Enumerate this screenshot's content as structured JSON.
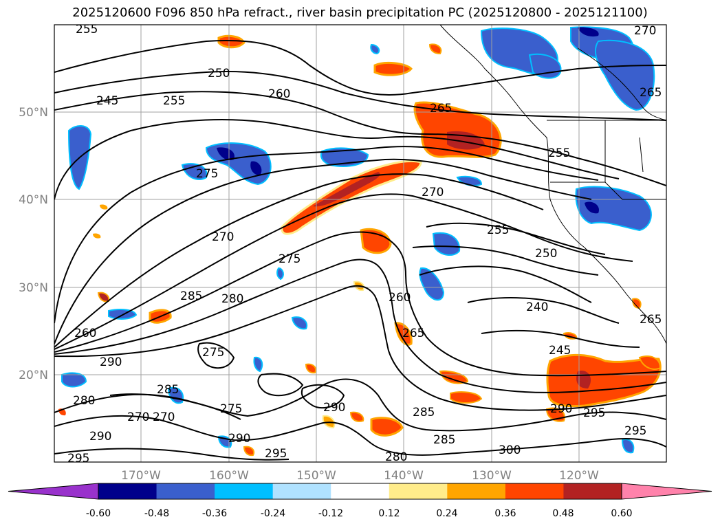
{
  "title": "2025120600 F096 850 hPa refract., river basin precipitation PC (2025120800 - 2025121100)",
  "map": {
    "lon_labels": [
      "170°W",
      "160°W",
      "150°W",
      "140°W",
      "130°W",
      "120°W"
    ],
    "lat_labels": [
      "50°N",
      "40°N",
      "30°N",
      "20°N"
    ],
    "contour_labels": [
      "255",
      "250",
      "245",
      "255",
      "260",
      "265",
      "270",
      "265",
      "255",
      "270",
      "275",
      "270",
      "285",
      "275",
      "280",
      "255",
      "250",
      "240",
      "260",
      "260",
      "265",
      "290",
      "275",
      "245",
      "280",
      "285",
      "270",
      "270",
      "275",
      "290",
      "290",
      "285",
      "285",
      "290",
      "295",
      "295",
      "295",
      "295",
      "280",
      "300",
      "290",
      "265"
    ]
  },
  "colorbar": {
    "tick_labels": [
      "-0.60",
      "-0.48",
      "-0.36",
      "-0.24",
      "-0.12",
      "0.12",
      "0.24",
      "0.36",
      "0.48",
      "0.60"
    ],
    "colors": [
      "#9932cc",
      "#00008b",
      "#3a5fcd",
      "#00bfff",
      "#b0e2ff",
      "#ffffff",
      "#ffec8b",
      "#ffa500",
      "#ff4500",
      "#b22222",
      "#ff82ab"
    ]
  },
  "legend_colors": {
    "strong_negative": "#00008b",
    "negative": "#3a5fcd",
    "weak_negative": "#00bfff",
    "slight_negative": "#b0e2ff",
    "slight_positive": "#ffec8b",
    "weak_positive": "#ffa500",
    "positive": "#ff4500",
    "strong_positive": "#b22222",
    "grid": "#a0a0a0",
    "contour": "#000000"
  }
}
